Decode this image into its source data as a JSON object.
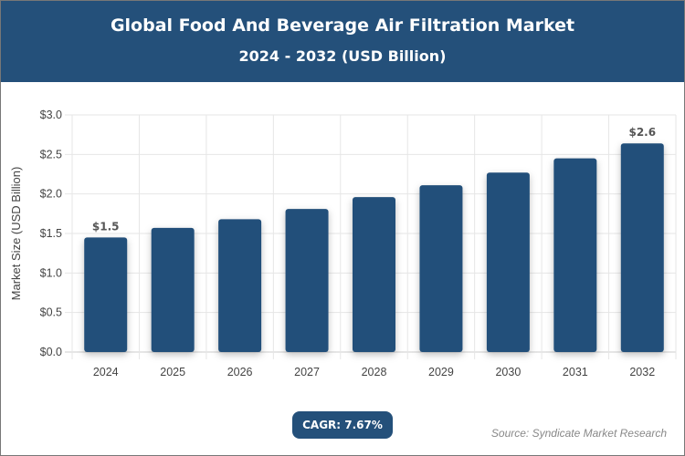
{
  "header": {
    "title": "Global Food And Beverage Air Filtration Market",
    "subtitle": "2024 - 2032 (USD Billion)"
  },
  "cagr": "CAGR: 7.67%",
  "source": "Source: Syndicate Market Research",
  "colors": {
    "bar": "#24507a",
    "header": "#24507a"
  },
  "chart_data": {
    "type": "bar",
    "title": "Global Food And Beverage Air Filtration Market",
    "subtitle": "2024 - 2032 (USD Billion)",
    "xlabel": "",
    "ylabel": "Market Size (USD Billion)",
    "categories": [
      "2024",
      "2025",
      "2026",
      "2027",
      "2028",
      "2029",
      "2030",
      "2031",
      "2032"
    ],
    "values": [
      1.45,
      1.57,
      1.68,
      1.81,
      1.96,
      2.11,
      2.27,
      2.45,
      2.64
    ],
    "data_labels": {
      "0": "$1.5",
      "8": "$2.6"
    },
    "ylim": [
      0,
      3.0
    ],
    "yticks": [
      "$0.0",
      "$0.5",
      "$1.0",
      "$1.5",
      "$2.0",
      "$2.5",
      "$3.0"
    ],
    "grid": true
  }
}
